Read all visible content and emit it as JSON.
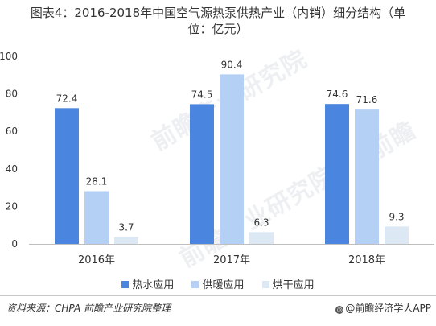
{
  "title_line1": "图表4：2016-2018年中国空气源热泵供热产业（内销）细分结构（单",
  "title_line2": "位：亿元）",
  "chart_data": {
    "type": "bar",
    "title": "图表4：2016-2018年中国空气源热泵供热产业（内销）细分结构（单位：亿元）",
    "categories": [
      "2016年",
      "2017年",
      "2018年"
    ],
    "series": [
      {
        "name": "热水应用",
        "values": [
          72.4,
          74.5,
          74.6
        ],
        "color": "#4a86e0"
      },
      {
        "name": "供暖应用",
        "values": [
          28.1,
          90.4,
          71.6
        ],
        "color": "#b4d0f5"
      },
      {
        "name": "烘干应用",
        "values": [
          3.7,
          6.3,
          9.3
        ],
        "color": "#dde8f5"
      }
    ],
    "yticks": [
      0,
      20,
      40,
      60,
      80,
      100
    ],
    "ylim": [
      0,
      100
    ],
    "xlabel": "",
    "ylabel": "",
    "grid": false,
    "legend_position": "bottom"
  },
  "source": "资料来源：CHPA 前瞻产业研究院整理",
  "brand": "@前瞻经济学人APP",
  "watermarks": [
    "前瞻产业研究院",
    "前瞻产业研究院",
    "前瞻"
  ]
}
